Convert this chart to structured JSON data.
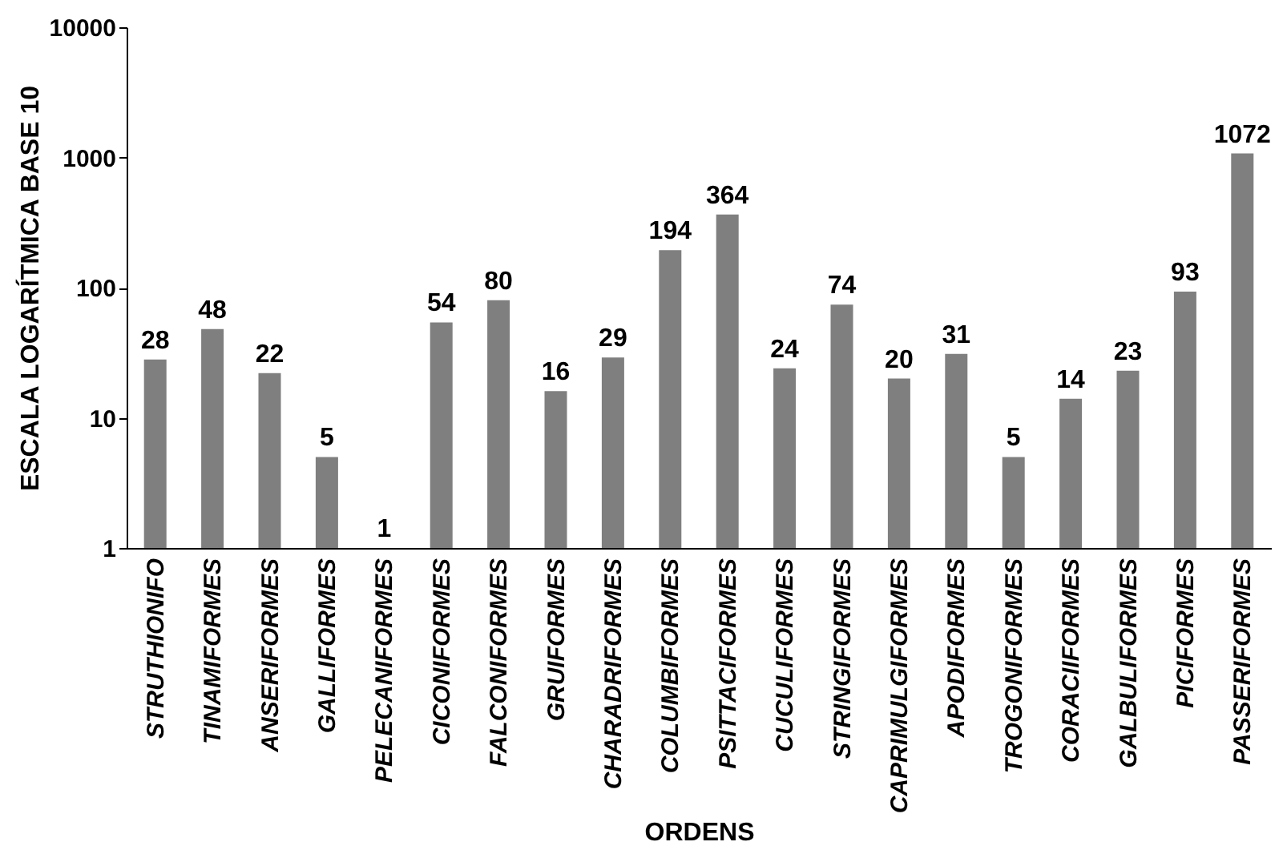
{
  "chart_data": {
    "type": "bar",
    "xlabel": "ORDENS",
    "ylabel": "ESCALA LOGARÍTMICA BASE 10",
    "categories": [
      "STRUTHIONIFO",
      "TINAMIFORMES",
      "ANSERIFORMES",
      "GALLIFORMES",
      "PELECANIFORMES",
      "CICONIFORMES",
      "FALCONIFORMES",
      "GRUIFORMES",
      "CHARADRIFORMES",
      "COLUMBIFORMES",
      "PSITTACIFORMES",
      "CUCULIFORMES",
      "STRINGIFORMES",
      "CAPRIMULGIFORMES",
      "APODIFORMES",
      "TROGONIFORMES",
      "CORACIIFORMES",
      "GALBULIFORMES",
      "PICIFORMES",
      "PASSERIFORMES"
    ],
    "values": [
      28,
      48,
      22,
      5,
      1,
      54,
      80,
      16,
      29,
      194,
      364,
      24,
      74,
      20,
      31,
      5,
      14,
      23,
      93,
      1072
    ],
    "color": "#7f7f7f",
    "log": true,
    "ylim": [
      1,
      10000
    ],
    "yticks": [
      1,
      10,
      100,
      1000,
      10000
    ],
    "data_labels": true,
    "grid": false
  }
}
